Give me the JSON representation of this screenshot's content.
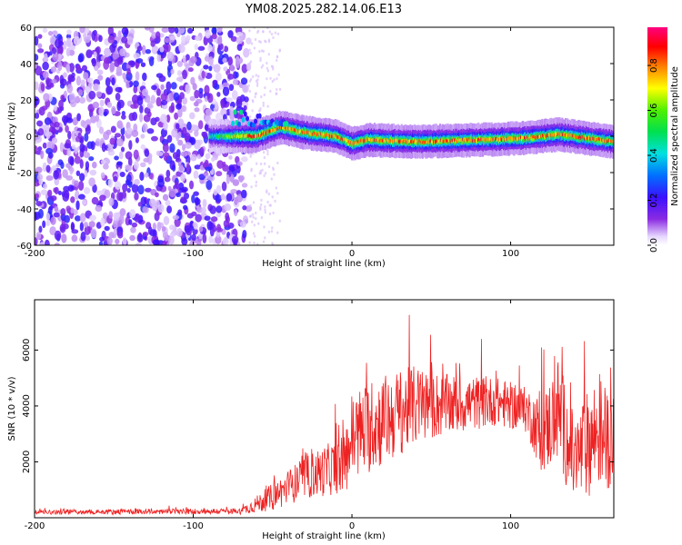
{
  "title": "YM08.2025.282.14.06.E13",
  "chart_data": [
    {
      "type": "heatmap",
      "title": "YM08.2025.282.14.06.E13",
      "xlabel": "Height of straight line (km)",
      "ylabel": "Frequency (Hz)",
      "xlim": [
        -200,
        165
      ],
      "ylim": [
        -60,
        60
      ],
      "xticks": [
        -200,
        -100,
        0,
        100
      ],
      "yticks": [
        -60,
        -40,
        -20,
        0,
        20,
        40,
        60
      ],
      "colorbar": {
        "label": "Normalized spectral amplitude",
        "range": [
          0,
          0.97
        ],
        "ticks": [
          0.0,
          0.2,
          0.4,
          0.6,
          0.8
        ],
        "colormap": "rainbow (purple-blue-cyan-green-yellow-red-magenta)"
      },
      "features": {
        "noise_region_km": [
          -200,
          -65
        ],
        "noise_amplitude_typical": 0.15,
        "signal_band_start_km": -90,
        "signal_band_center_hz": [
          {
            "x": -90,
            "f": 0
          },
          {
            "x": -60,
            "f": 0
          },
          {
            "x": -45,
            "f": 5
          },
          {
            "x": -30,
            "f": 2
          },
          {
            "x": -10,
            "f": 0
          },
          {
            "x": 0,
            "f": -4
          },
          {
            "x": 10,
            "f": -2
          },
          {
            "x": 40,
            "f": -3
          },
          {
            "x": 80,
            "f": -2
          },
          {
            "x": 110,
            "f": -1
          },
          {
            "x": 130,
            "f": 1
          },
          {
            "x": 165,
            "f": -3
          }
        ],
        "signal_band_peak_amplitude": 0.9
      }
    },
    {
      "type": "line",
      "xlabel": "Height of straight line (km)",
      "ylabel": "SNR (10 * v/v)",
      "xlim": [
        -200,
        165
      ],
      "ylim": [
        0,
        7800
      ],
      "xticks": [
        -200,
        -100,
        0,
        100
      ],
      "yticks": [
        2000,
        4000,
        6000
      ],
      "color": "#ee2222",
      "envelope": [
        {
          "x": -200,
          "base": 180,
          "amp": 150
        },
        {
          "x": -70,
          "base": 200,
          "amp": 200
        },
        {
          "x": -50,
          "base": 600,
          "amp": 900
        },
        {
          "x": -30,
          "base": 1200,
          "amp": 1400
        },
        {
          "x": -5,
          "base": 1600,
          "amp": 1900
        },
        {
          "x": 0,
          "base": 2400,
          "amp": 3000
        },
        {
          "x": 20,
          "base": 3000,
          "amp": 3000
        },
        {
          "x": 40,
          "base": 3600,
          "amp": 2600
        },
        {
          "x": 60,
          "base": 3700,
          "amp": 2000
        },
        {
          "x": 90,
          "base": 3900,
          "amp": 1600
        },
        {
          "x": 110,
          "base": 3600,
          "amp": 1500
        },
        {
          "x": 120,
          "base": 2500,
          "amp": 2500
        },
        {
          "x": 130,
          "base": 3300,
          "amp": 3500
        },
        {
          "x": 140,
          "base": 1500,
          "amp": 3000
        },
        {
          "x": 155,
          "base": 2500,
          "amp": 3800
        },
        {
          "x": 165,
          "base": 2200,
          "amp": 3000
        }
      ]
    }
  ]
}
